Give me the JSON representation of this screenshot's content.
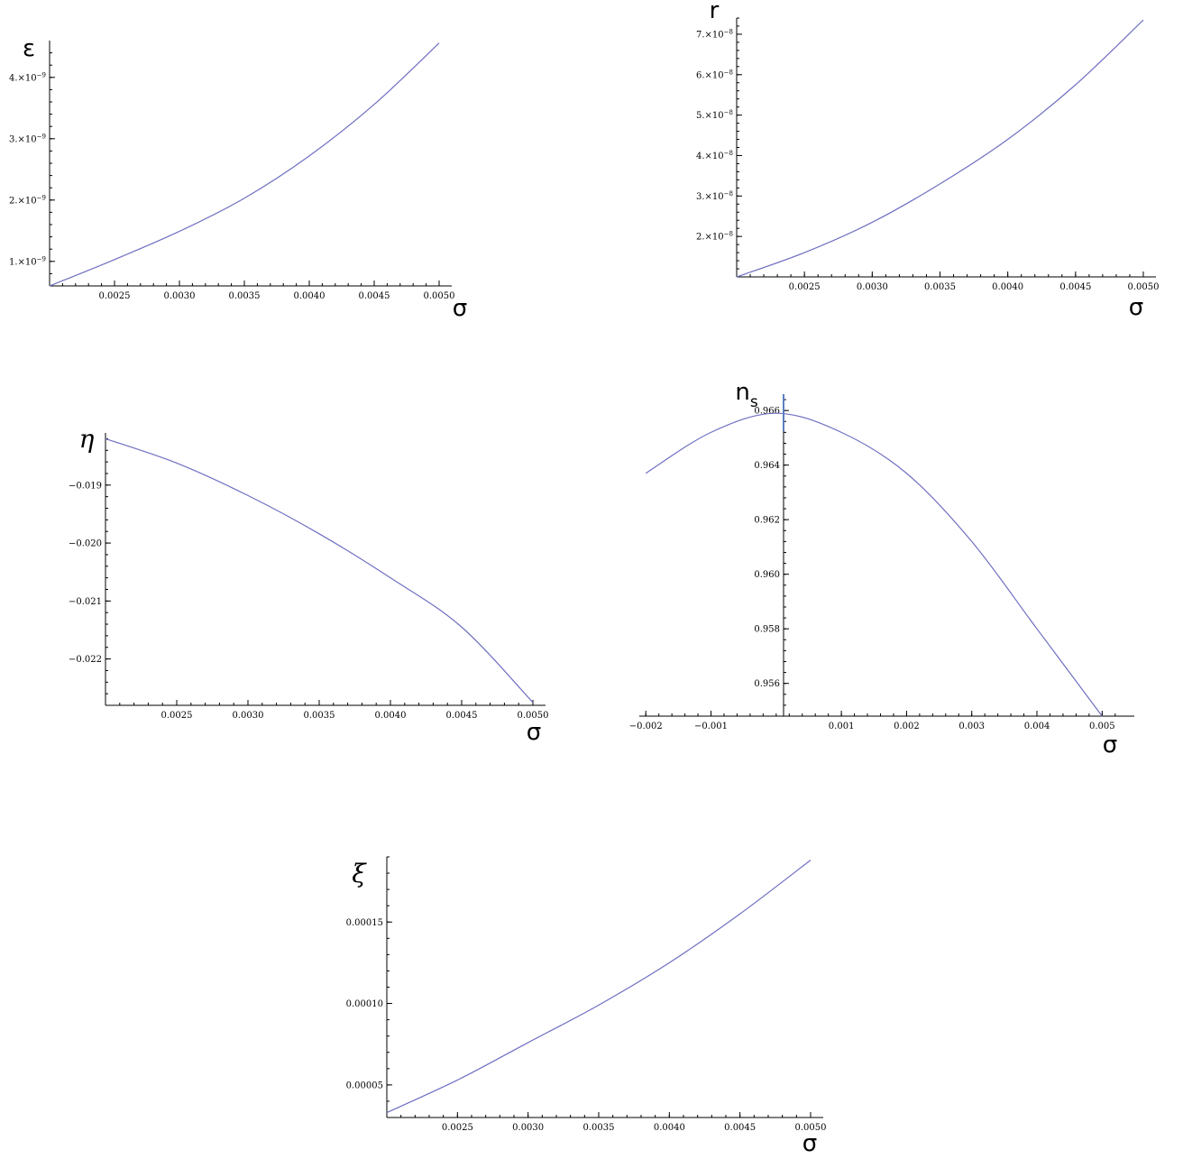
{
  "colors": {
    "curve": "#6f6fc2",
    "axis": "#000000",
    "background": "#ffffff",
    "marker": "#5a7fc0"
  },
  "chart_data": [
    {
      "id": "epsilon",
      "type": "line",
      "ylabel": "ε",
      "xlabel": "σ",
      "xlim": [
        0.002,
        0.005
      ],
      "ylim": [
        6e-10,
        4.6e-09
      ],
      "x_ticks": [
        0.0025,
        0.003,
        0.0035,
        0.004,
        0.0045,
        0.005
      ],
      "x_tick_labels": [
        "0.0025",
        "0.0030",
        "0.0035",
        "0.0040",
        "0.0045",
        "0.0050"
      ],
      "y_ticks": [
        1e-09,
        2e-09,
        3e-09,
        4e-09
      ],
      "y_tick_labels": [
        {
          "mantissa": "1.×10",
          "exp": "−9"
        },
        {
          "mantissa": "2.×10",
          "exp": "−9"
        },
        {
          "mantissa": "3.×10",
          "exp": "−9"
        },
        {
          "mantissa": "4.×10",
          "exp": "−9"
        }
      ],
      "series": [
        {
          "x": [
            0.002,
            0.0025,
            0.003,
            0.0035,
            0.004,
            0.0045,
            0.005
          ],
          "y": [
            6e-10,
            1.03e-09,
            1.49e-09,
            2.03e-09,
            2.72e-09,
            3.56e-09,
            4.56e-09
          ]
        }
      ]
    },
    {
      "id": "r",
      "type": "line",
      "ylabel": "r",
      "xlabel": "σ",
      "xlim": [
        0.002,
        0.005
      ],
      "ylim": [
        1e-08,
        7.4e-08
      ],
      "x_ticks": [
        0.0025,
        0.003,
        0.0035,
        0.004,
        0.0045,
        0.005
      ],
      "x_tick_labels": [
        "0.0025",
        "0.0030",
        "0.0035",
        "0.0040",
        "0.0045",
        "0.0050"
      ],
      "y_ticks": [
        2e-08,
        3e-08,
        4e-08,
        5e-08,
        6e-08,
        7e-08
      ],
      "y_tick_labels": [
        {
          "mantissa": "2.×10",
          "exp": "−8"
        },
        {
          "mantissa": "3.×10",
          "exp": "−8"
        },
        {
          "mantissa": "4.×10",
          "exp": "−8"
        },
        {
          "mantissa": "5.×10",
          "exp": "−8"
        },
        {
          "mantissa": "6.×10",
          "exp": "−8"
        },
        {
          "mantissa": "7.×10",
          "exp": "−8"
        }
      ],
      "series": [
        {
          "x": [
            0.002,
            0.0025,
            0.003,
            0.0035,
            0.004,
            0.0045,
            0.005
          ],
          "y": [
            1e-08,
            1.6e-08,
            2.35e-08,
            3.3e-08,
            4.4e-08,
            5.75e-08,
            7.35e-08
          ]
        }
      ]
    },
    {
      "id": "eta",
      "type": "line",
      "ylabel": "η",
      "xlabel": "σ",
      "xlim": [
        0.002,
        0.005
      ],
      "ylim": [
        -0.0228,
        -0.0181
      ],
      "x_ticks": [
        0.0025,
        0.003,
        0.0035,
        0.004,
        0.0045,
        0.005
      ],
      "x_tick_labels": [
        "0.0025",
        "0.0030",
        "0.0035",
        "0.0040",
        "0.0045",
        "0.0050"
      ],
      "y_ticks": [
        -0.019,
        -0.02,
        -0.021,
        -0.022
      ],
      "y_tick_labels": [
        "−0.019",
        "−0.020",
        "−0.021",
        "−0.022"
      ],
      "series": [
        {
          "x": [
            0.002,
            0.0025,
            0.003,
            0.0035,
            0.004,
            0.0045,
            0.005
          ],
          "y": [
            -0.0182,
            -0.01862,
            -0.01918,
            -0.01984,
            -0.0206,
            -0.02145,
            -0.02275
          ]
        }
      ]
    },
    {
      "id": "ns",
      "type": "line",
      "ylabel": "n",
      "ylabel_sub": "s",
      "xlabel": "σ",
      "xlim": [
        -0.0021,
        0.0053
      ],
      "ylim": [
        0.9548,
        0.9666
      ],
      "x_ticks": [
        -0.002,
        -0.001,
        0.001,
        0.002,
        0.003,
        0.004,
        0.005
      ],
      "x_tick_labels": [
        "−0.002",
        "−0.001",
        "0.001",
        "0.002",
        "0.003",
        "0.004",
        "0.005"
      ],
      "y_ticks": [
        0.956,
        0.958,
        0.96,
        0.962,
        0.964,
        0.966
      ],
      "y_tick_labels": [
        "0.956",
        "0.958",
        "0.960",
        "0.962",
        "0.964",
        "0.966"
      ],
      "series": [
        {
          "x": [
            -0.002,
            -0.001,
            0.0,
            0.001,
            0.002,
            0.003,
            0.004,
            0.005
          ],
          "y": [
            0.9637,
            0.9652,
            0.9659,
            0.9652,
            0.9637,
            0.9612,
            0.958,
            0.9548
          ]
        }
      ]
    },
    {
      "id": "xi",
      "type": "line",
      "ylabel": "ξ",
      "xlabel": "σ",
      "xlim": [
        0.002,
        0.005
      ],
      "ylim": [
        3e-05,
        0.00019
      ],
      "x_ticks": [
        0.0025,
        0.003,
        0.0035,
        0.004,
        0.0045,
        0.005
      ],
      "x_tick_labels": [
        "0.0025",
        "0.0030",
        "0.0035",
        "0.0040",
        "0.0045",
        "0.0050"
      ],
      "y_ticks": [
        5e-05,
        0.0001,
        0.00015
      ],
      "y_tick_labels": [
        "0.00005",
        "0.00010",
        "0.00015"
      ],
      "series": [
        {
          "x": [
            0.002,
            0.0025,
            0.003,
            0.0035,
            0.004,
            0.0045,
            0.005
          ],
          "y": [
            3.3e-05,
            5.3e-05,
            7.6e-05,
            9.9e-05,
            0.000125,
            0.000155,
            0.000188
          ]
        }
      ]
    }
  ]
}
